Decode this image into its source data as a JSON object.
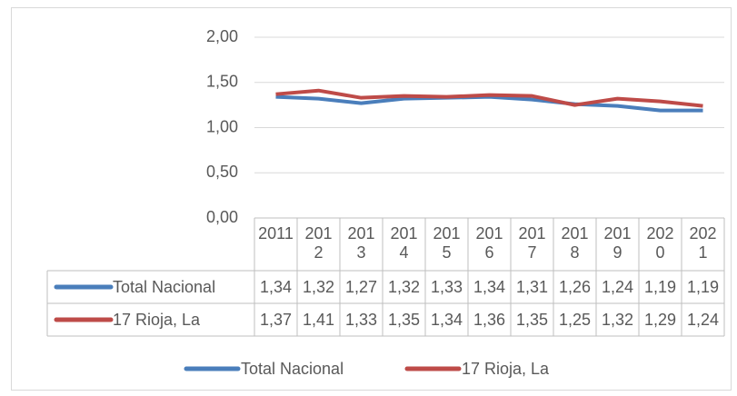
{
  "chart_data": {
    "type": "line",
    "categories": [
      "2011",
      "2012",
      "2013",
      "2014",
      "2015",
      "2016",
      "2017",
      "2018",
      "2019",
      "2020",
      "2021"
    ],
    "series": [
      {
        "name": "Total Nacional",
        "color": "#4a7ebb",
        "values": [
          1.34,
          1.32,
          1.27,
          1.32,
          1.33,
          1.34,
          1.31,
          1.26,
          1.24,
          1.19,
          1.19
        ],
        "value_labels": [
          "1,34",
          "1,32",
          "1,27",
          "1,32",
          "1,33",
          "1,34",
          "1,31",
          "1,26",
          "1,24",
          "1,19",
          "1,19"
        ]
      },
      {
        "name": "17 Rioja, La",
        "color": "#be4b48",
        "values": [
          1.37,
          1.41,
          1.33,
          1.35,
          1.34,
          1.36,
          1.35,
          1.25,
          1.32,
          1.29,
          1.24
        ],
        "value_labels": [
          "1,37",
          "1,41",
          "1,33",
          "1,35",
          "1,34",
          "1,36",
          "1,35",
          "1,25",
          "1,32",
          "1,29",
          "1,24"
        ]
      }
    ],
    "ylim": [
      0,
      2
    ],
    "yticks": [
      {
        "value": 0,
        "label": "0,00"
      },
      {
        "value": 0.5,
        "label": "0,50"
      },
      {
        "value": 1,
        "label": "1,00"
      },
      {
        "value": 1.5,
        "label": "1,50"
      },
      {
        "value": 2,
        "label": "2,00"
      }
    ],
    "grid": true,
    "legend": "bottom"
  }
}
